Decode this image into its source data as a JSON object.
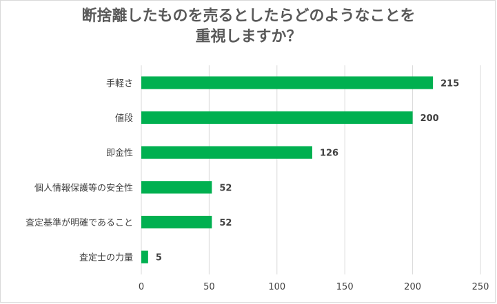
{
  "chart_data": {
    "type": "bar",
    "orientation": "horizontal",
    "title_lines": [
      "断捨離したものを売るとしたらどのようなことを",
      "重視しますか？"
    ],
    "categories": [
      "手軽さ",
      "値段",
      "即金性",
      "個人情報保護等の安全性",
      "査定基準が明確であること",
      "査定士の力量"
    ],
    "values": [
      215,
      200,
      126,
      52,
      52,
      5
    ],
    "data_labels": [
      "215",
      "200",
      "126",
      "52",
      "52",
      "5"
    ],
    "xlim": [
      0,
      250
    ],
    "x_ticks": [
      "0",
      "50",
      "100",
      "150",
      "200",
      "250"
    ],
    "grid": true,
    "legend": "none",
    "bar_color": "#00b050",
    "grid_color": "#d9d9d9"
  }
}
